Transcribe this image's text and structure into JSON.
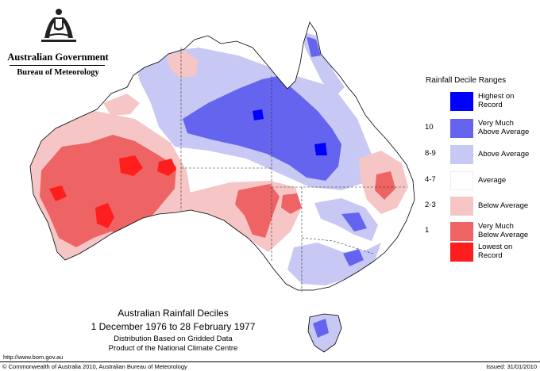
{
  "header": {
    "government": "Australian Government",
    "bureau": "Bureau of Meteorology"
  },
  "legend": {
    "title": "Rainfall Decile Ranges",
    "items": [
      {
        "range": "",
        "label": "Highest on Record",
        "color": "#0000ff"
      },
      {
        "range": "10",
        "label": "Very Much Above Average",
        "color": "#6464ee"
      },
      {
        "range": "8-9",
        "label": "Above Average",
        "color": "#c8c8f4"
      },
      {
        "range": "4-7",
        "label": "Average",
        "color": "#ffffff"
      },
      {
        "range": "2-3",
        "label": "Below Average",
        "color": "#f6c6c6"
      },
      {
        "range": "1",
        "label": "Very Much Below Average",
        "color": "#ee6464"
      },
      {
        "range": "",
        "label": "Lowest on Record",
        "color": "#ff1e1e"
      }
    ]
  },
  "caption": {
    "title": "Australian Rainfall Deciles",
    "period": "1 December 1976 to 28 February 1977",
    "line3": "Distribution Based on Gridded Data",
    "line4": "Product of the National Climate Centre"
  },
  "url": "http://www.bom.gov.au",
  "footer": {
    "copyright": "© Commonwealth of Australia 2010, Australian Bureau of Meteorology",
    "issued": "Issued: 31/01/2010"
  }
}
